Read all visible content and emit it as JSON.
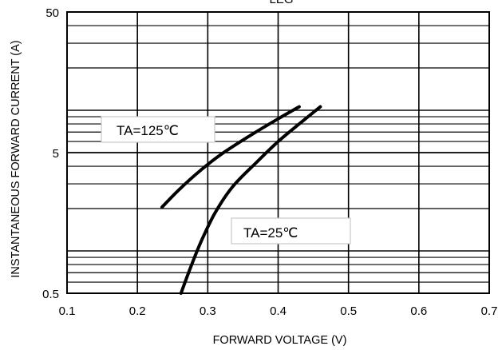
{
  "chart_data": {
    "type": "line",
    "title": "LEG",
    "xlabel": "FORWARD VOLTAGE (V)",
    "ylabel": "INSTANTANEOUS FORWARD CURRENT (A)",
    "x_scale": "linear",
    "y_scale": "log",
    "xlim": [
      0.1,
      0.7
    ],
    "ylim": [
      0.5,
      50
    ],
    "x_ticks": [
      "0.1",
      "0.2",
      "0.3",
      "0.4",
      "0.5",
      "0.6",
      "0.7"
    ],
    "y_ticks": [
      "0.5",
      "5",
      "50"
    ],
    "grid": true,
    "series": [
      {
        "name": "TA=125℃",
        "x": [
          0.235,
          0.26,
          0.29,
          0.32,
          0.36,
          0.4,
          0.43
        ],
        "y": [
          2.05,
          2.75,
          3.75,
          4.9,
          6.6,
          8.7,
          10.6
        ]
      },
      {
        "name": "TA=25℃",
        "x": [
          0.262,
          0.275,
          0.29,
          0.31,
          0.335,
          0.37,
          0.4,
          0.43,
          0.46
        ],
        "y": [
          0.5,
          0.75,
          1.15,
          1.85,
          2.85,
          4.3,
          6.0,
          8.0,
          10.6
        ]
      }
    ],
    "annotations": [
      "TA=125℃",
      "TA=25℃"
    ]
  }
}
